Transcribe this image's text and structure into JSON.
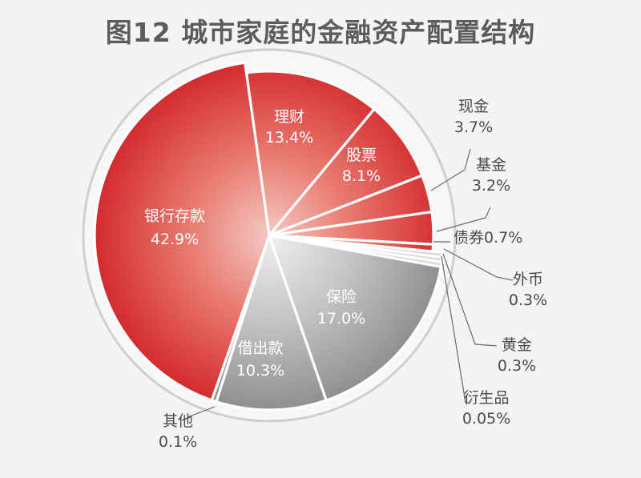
{
  "chart_data": {
    "type": "pie",
    "title": "图12 城市家庭的金融资产配置结构",
    "slices": [
      {
        "name": "理财",
        "value_label": "13.4%",
        "value": 13.4,
        "color": "#e2393d"
      },
      {
        "name": "股票",
        "value_label": "8.1%",
        "value": 8.1,
        "color": "#e2393d"
      },
      {
        "name": "现金",
        "value_label": "3.7%",
        "value": 3.7,
        "color": "#e2393d"
      },
      {
        "name": "基金",
        "value_label": "3.2%",
        "value": 3.2,
        "color": "#e2393d"
      },
      {
        "name": "债券",
        "value_label": "0.7%",
        "value": 0.7,
        "color": "#e2393d"
      },
      {
        "name": "外币",
        "value_label": "0.3%",
        "value": 0.3,
        "color": "#c9c9c9"
      },
      {
        "name": "黄金",
        "value_label": "0.3%",
        "value": 0.3,
        "color": "#c9c9c9"
      },
      {
        "name": "衍生品",
        "value_label": "0.05%",
        "value": 0.05,
        "color": "#c9c9c9"
      },
      {
        "name": "保险",
        "value_label": "17.0%",
        "value": 17.0,
        "color": "#9c9a9a"
      },
      {
        "name": "借出款",
        "value_label": "10.3%",
        "value": 10.3,
        "color": "#9c9a9a"
      },
      {
        "name": "其他",
        "value_label": "0.1%",
        "value": 0.1,
        "color": "#9c9a9a"
      },
      {
        "name": "银行存款",
        "value_label": "42.9%",
        "value": 42.9,
        "color": "#d92b2f"
      }
    ]
  }
}
